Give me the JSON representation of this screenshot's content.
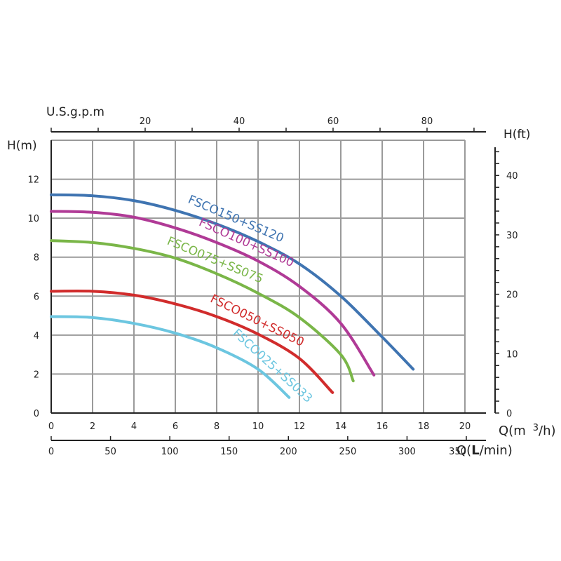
{
  "chart_data": {
    "type": "line",
    "x_primary": {
      "label_main": "Q(m",
      "label_sup": "3",
      "label_end": "/h)",
      "range": [
        0,
        20
      ],
      "ticks": [
        "0",
        "2",
        "4",
        "6",
        "8",
        "10",
        "12",
        "14",
        "16",
        "18",
        "20"
      ]
    },
    "x_lmin": {
      "label_main": "Q(",
      "label_bold": "L",
      "label_end": "/min)",
      "range": [
        0,
        350
      ],
      "ticks": [
        "0",
        "50",
        "100",
        "150",
        "200",
        "250",
        "300",
        "350"
      ]
    },
    "x_gpm": {
      "label": "U.S.g.p.m",
      "ticks": [
        "20",
        "40",
        "60",
        "80"
      ],
      "values": [
        20,
        40,
        60,
        80
      ]
    },
    "y_primary": {
      "label": "H(m)",
      "range": [
        0,
        14
      ],
      "ticks": [
        "0",
        "2",
        "4",
        "6",
        "8",
        "10",
        "12"
      ]
    },
    "y_ft": {
      "label": "H(ft)",
      "range": [
        0,
        46
      ],
      "ticks": [
        "0",
        "10",
        "20",
        "30",
        "40"
      ]
    },
    "grid": true,
    "series": [
      {
        "name": "FSCO150+SS120",
        "color": "#3f74b1",
        "x": [
          0,
          2,
          4,
          6,
          8,
          10,
          12,
          14,
          16,
          17.5
        ],
        "y": [
          11.2,
          11.15,
          10.9,
          10.4,
          9.7,
          8.8,
          7.65,
          6.0,
          3.9,
          2.25
        ]
      },
      {
        "name": "FSCO100+SS100",
        "color": "#b03a96",
        "x": [
          0,
          2,
          4,
          6,
          8,
          10,
          12,
          14,
          15.6
        ],
        "y": [
          10.35,
          10.3,
          10.05,
          9.5,
          8.75,
          7.8,
          6.5,
          4.6,
          1.95
        ]
      },
      {
        "name": "FSCO075+SS075",
        "color": "#7ab648",
        "x": [
          0,
          2,
          4,
          6,
          8,
          10,
          12,
          14,
          14.6
        ],
        "y": [
          8.85,
          8.75,
          8.45,
          7.95,
          7.15,
          6.15,
          4.9,
          3.0,
          1.65
        ]
      },
      {
        "name": "FSCO050+SS050",
        "color": "#d12c2c",
        "x": [
          0,
          2,
          4,
          6,
          8,
          10,
          12,
          13.6
        ],
        "y": [
          6.25,
          6.25,
          6.05,
          5.6,
          4.95,
          4.05,
          2.8,
          1.05
        ]
      },
      {
        "name": "FSCO025+SS033",
        "color": "#6cc6e0",
        "x": [
          0,
          2,
          4,
          6,
          8,
          10,
          11.5
        ],
        "y": [
          4.95,
          4.9,
          4.6,
          4.1,
          3.35,
          2.25,
          0.8
        ]
      }
    ]
  }
}
